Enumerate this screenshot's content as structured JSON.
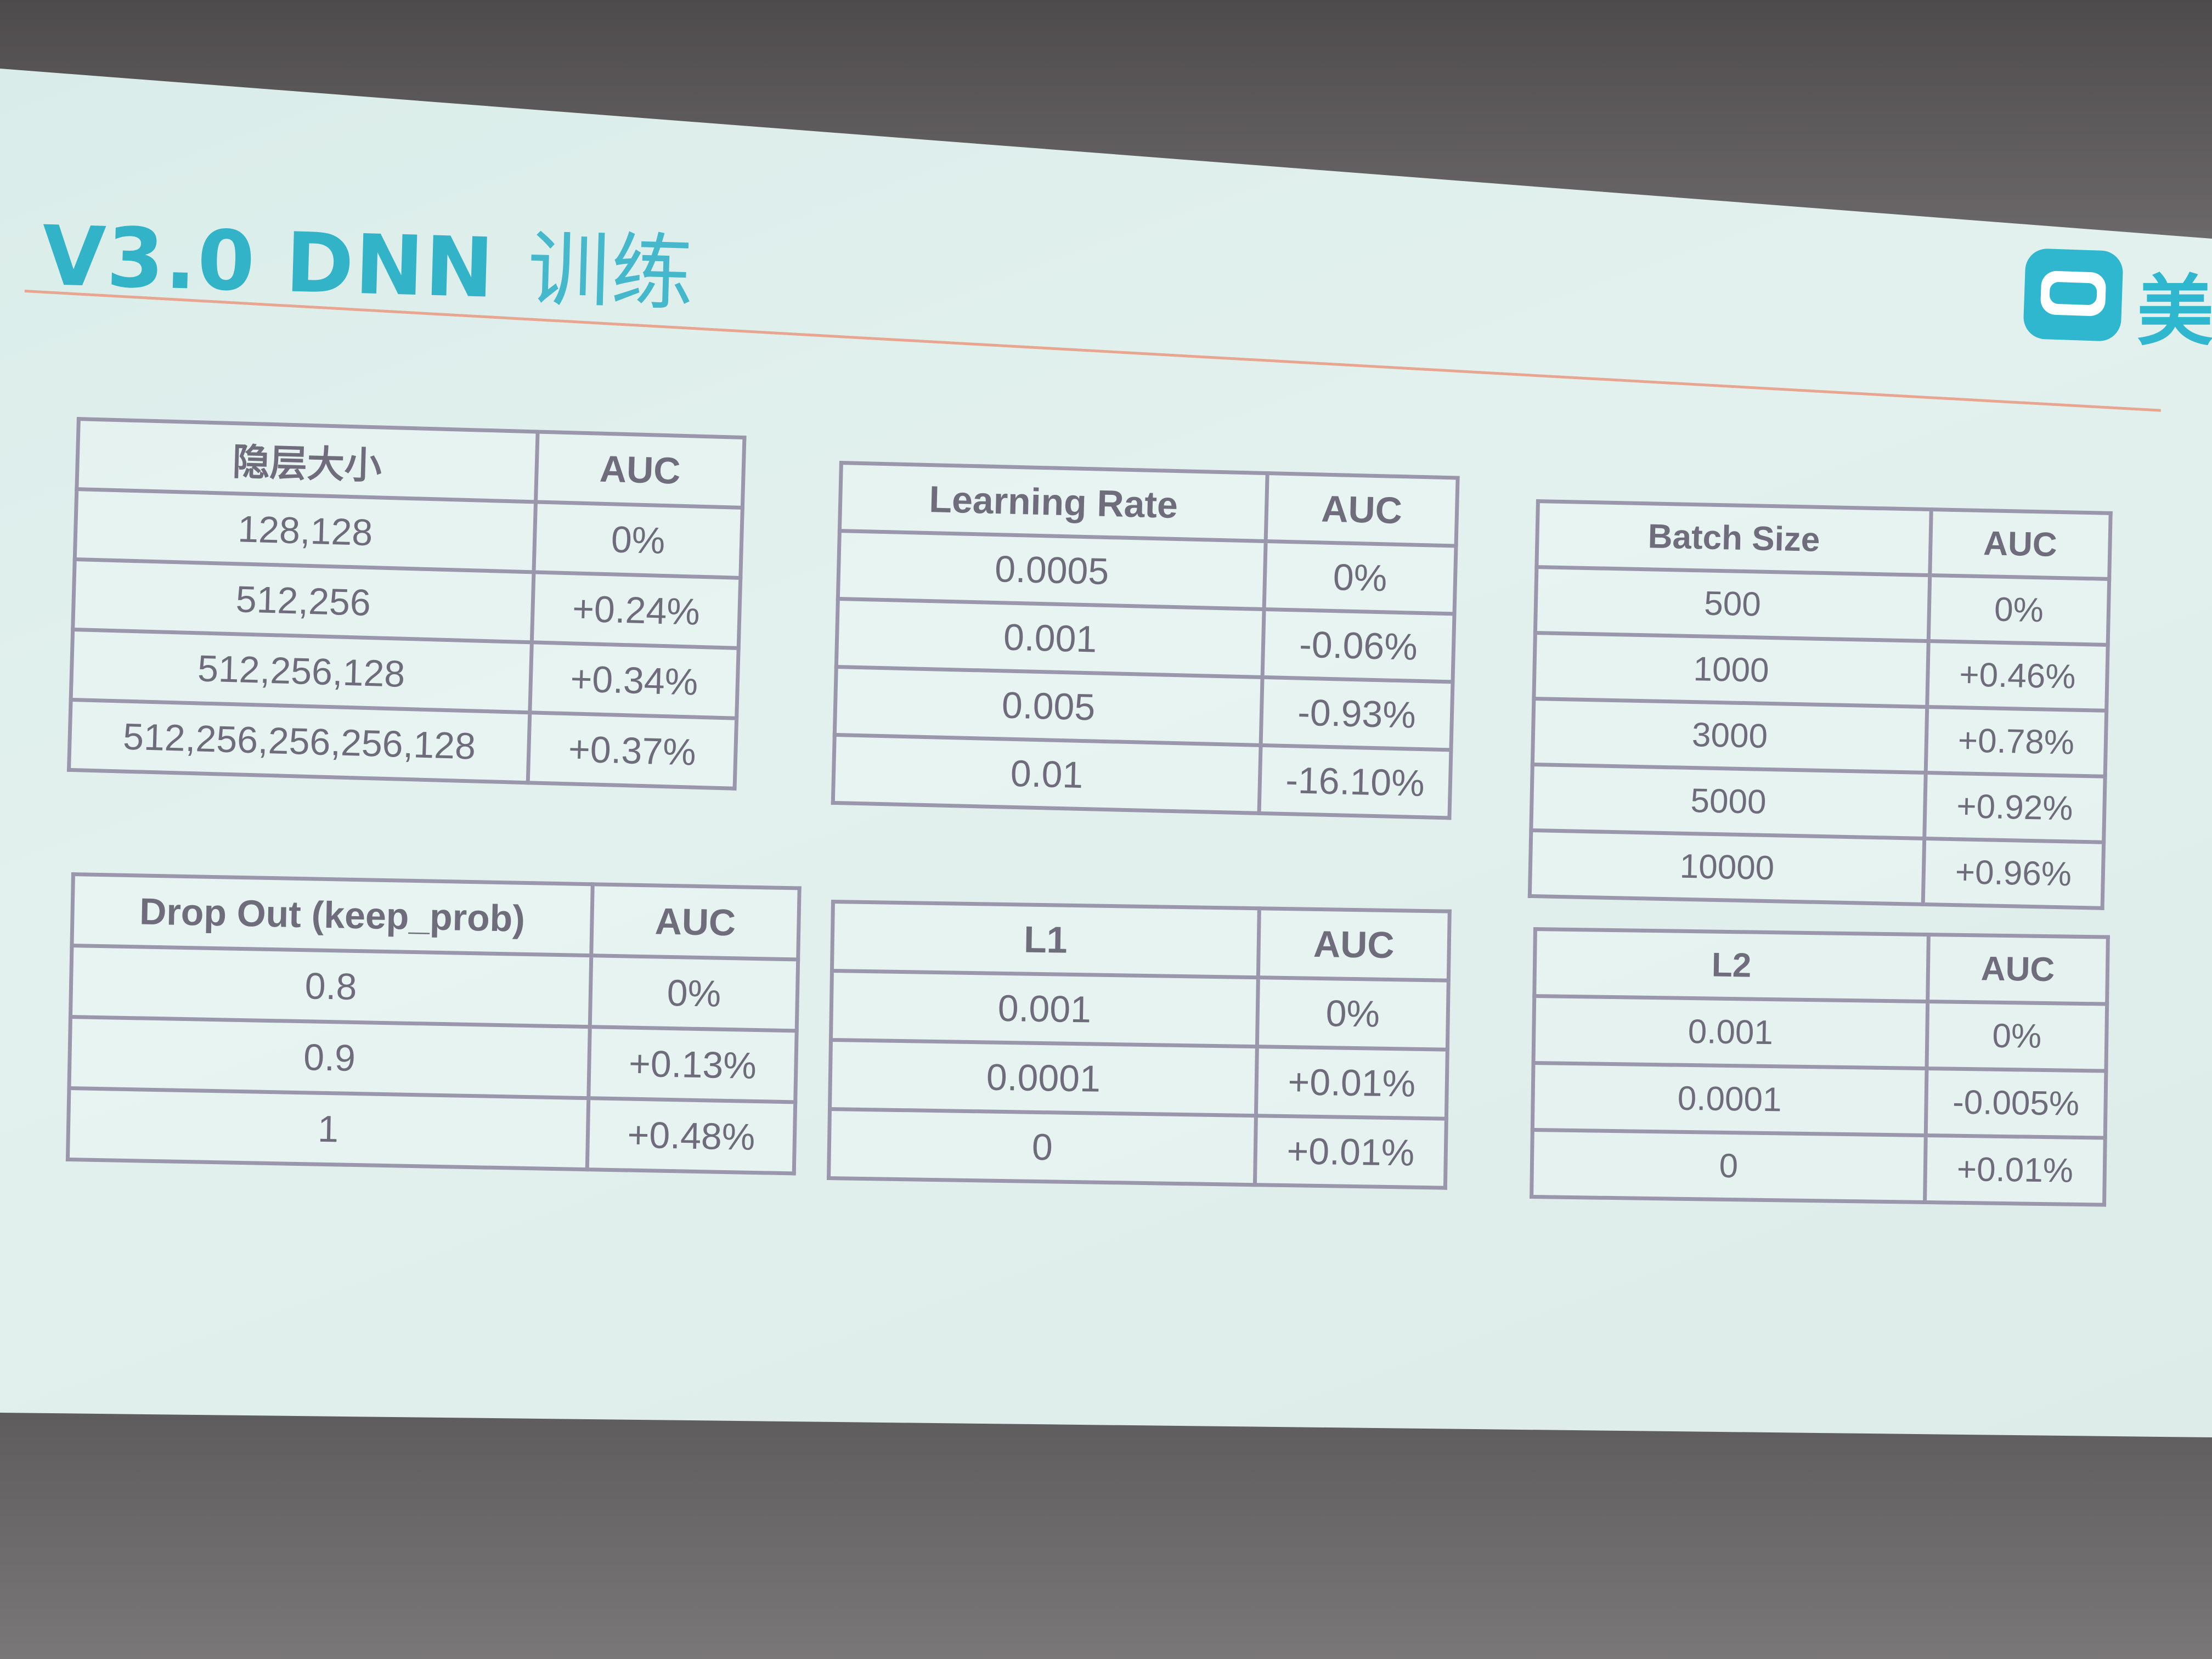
{
  "slide": {
    "title": "V3.0 DNN",
    "title_cn": "训练",
    "logo_text": "美"
  },
  "tables": {
    "hidden_size": {
      "header": [
        "隐层大小",
        "AUC"
      ],
      "rows": [
        [
          "128,128",
          "0%"
        ],
        [
          "512,256",
          "+0.24%"
        ],
        [
          "512,256,128",
          "+0.34%"
        ],
        [
          "512,256,256,256,128",
          "+0.37%"
        ]
      ]
    },
    "learning_rate": {
      "header": [
        "Learning Rate",
        "AUC"
      ],
      "rows": [
        [
          "0.0005",
          "0%"
        ],
        [
          "0.001",
          "-0.06%"
        ],
        [
          "0.005",
          "-0.93%"
        ],
        [
          "0.01",
          "-16.10%"
        ]
      ]
    },
    "batch_size": {
      "header": [
        "Batch Size",
        "AUC"
      ],
      "rows": [
        [
          "500",
          "0%"
        ],
        [
          "1000",
          "+0.46%"
        ],
        [
          "3000",
          "+0.78%"
        ],
        [
          "5000",
          "+0.92%"
        ],
        [
          "10000",
          "+0.96%"
        ]
      ]
    },
    "dropout": {
      "header": [
        "Drop Out (keep_prob)",
        "AUC"
      ],
      "rows": [
        [
          "0.8",
          "0%"
        ],
        [
          "0.9",
          "+0.13%"
        ],
        [
          "1",
          "+0.48%"
        ]
      ]
    },
    "l1": {
      "header": [
        "L1",
        "AUC"
      ],
      "rows": [
        [
          "0.001",
          "0%"
        ],
        [
          "0.0001",
          "+0.01%"
        ],
        [
          "0",
          "+0.01%"
        ]
      ]
    },
    "l2": {
      "header": [
        "L2",
        "AUC"
      ],
      "rows": [
        [
          "0.001",
          "0%"
        ],
        [
          "0.0001",
          "-0.005%"
        ],
        [
          "0",
          "+0.01%"
        ]
      ]
    }
  },
  "colors": {
    "title": "#32b3c8",
    "rule": "#e8a58f",
    "table_border": "#9a96ab",
    "table_text": "#6e6c7a"
  }
}
